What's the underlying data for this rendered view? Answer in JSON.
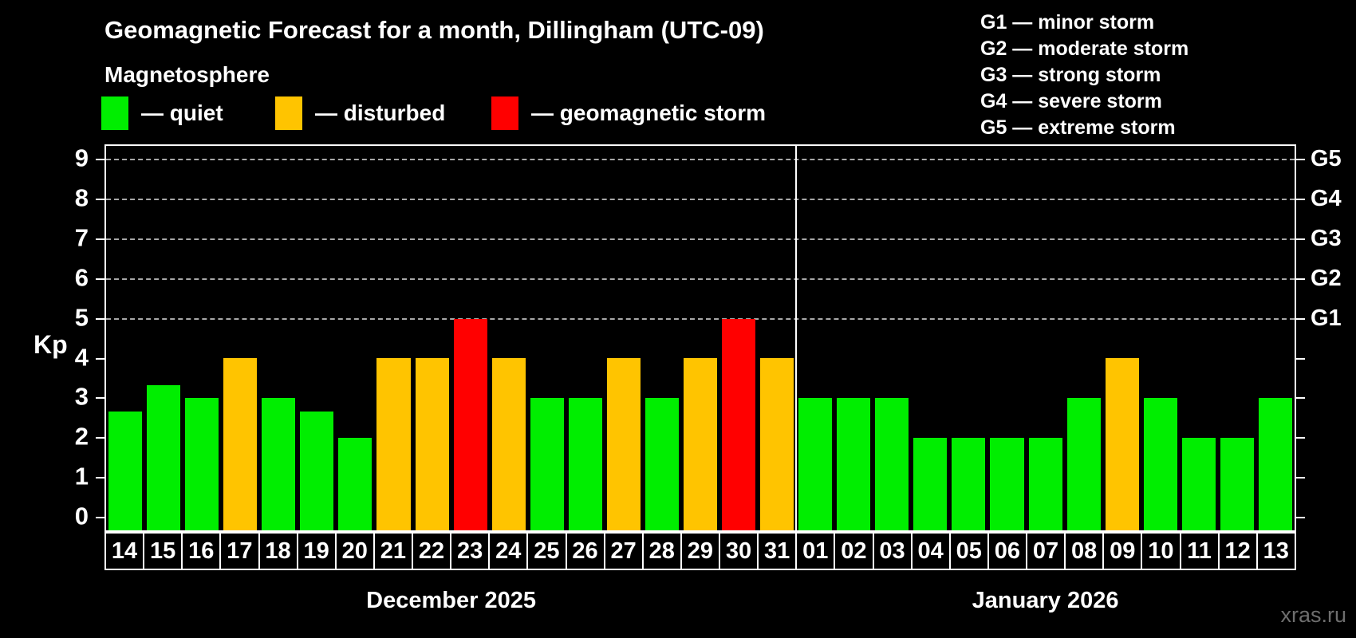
{
  "title": "Geomagnetic Forecast for a month, Dillingham (UTC-09)",
  "subtitle": "Magnetosphere",
  "watermark": "xras.ru",
  "legend": [
    {
      "key": "quiet",
      "label": "— quiet",
      "color": "#00ee00"
    },
    {
      "key": "disturbed",
      "label": "— disturbed",
      "color": "#ffc400"
    },
    {
      "key": "storm",
      "label": "— geomagnetic storm",
      "color": "#ff0000"
    }
  ],
  "g_legend": [
    "G1 — minor storm",
    "G2 — moderate storm",
    "G3 — strong storm",
    "G4 — severe storm",
    "G5 — extreme storm"
  ],
  "chart_data": {
    "type": "bar",
    "title": "Geomagnetic Forecast for a month, Dillingham (UTC-09)",
    "ylabel": "Kp",
    "ylim": [
      0,
      9
    ],
    "yticks": [
      0,
      1,
      2,
      3,
      4,
      5,
      6,
      7,
      8,
      9
    ],
    "gridlines_at": [
      5,
      6,
      7,
      8,
      9
    ],
    "grid": "dashed-horizontal-on-storm-levels-only",
    "legend_position": "top-left",
    "right_axis": [
      {
        "level": 5,
        "label": "G1"
      },
      {
        "level": 6,
        "label": "G2"
      },
      {
        "level": 7,
        "label": "G3"
      },
      {
        "level": 8,
        "label": "G4"
      },
      {
        "level": 9,
        "label": "G5"
      }
    ],
    "colors": {
      "quiet": "#00ee00",
      "disturbed": "#ffc400",
      "storm": "#ff0000"
    },
    "months": [
      {
        "label": "December 2025",
        "days": [
          {
            "day": "14",
            "value": 2.67,
            "status": "quiet"
          },
          {
            "day": "15",
            "value": 3.33,
            "status": "quiet"
          },
          {
            "day": "16",
            "value": 3,
            "status": "quiet"
          },
          {
            "day": "17",
            "value": 4,
            "status": "disturbed"
          },
          {
            "day": "18",
            "value": 3,
            "status": "quiet"
          },
          {
            "day": "19",
            "value": 2.67,
            "status": "quiet"
          },
          {
            "day": "20",
            "value": 2,
            "status": "quiet"
          },
          {
            "day": "21",
            "value": 4,
            "status": "disturbed"
          },
          {
            "day": "22",
            "value": 4,
            "status": "disturbed"
          },
          {
            "day": "23",
            "value": 5,
            "status": "storm"
          },
          {
            "day": "24",
            "value": 4,
            "status": "disturbed"
          },
          {
            "day": "25",
            "value": 3,
            "status": "quiet"
          },
          {
            "day": "26",
            "value": 3,
            "status": "quiet"
          },
          {
            "day": "27",
            "value": 4,
            "status": "disturbed"
          },
          {
            "day": "28",
            "value": 3,
            "status": "quiet"
          },
          {
            "day": "29",
            "value": 4,
            "status": "disturbed"
          },
          {
            "day": "30",
            "value": 5,
            "status": "storm"
          },
          {
            "day": "31",
            "value": 4,
            "status": "disturbed"
          }
        ]
      },
      {
        "label": "January 2026",
        "days": [
          {
            "day": "01",
            "value": 3,
            "status": "quiet"
          },
          {
            "day": "02",
            "value": 3,
            "status": "quiet"
          },
          {
            "day": "03",
            "value": 3,
            "status": "quiet"
          },
          {
            "day": "04",
            "value": 2,
            "status": "quiet"
          },
          {
            "day": "05",
            "value": 2,
            "status": "quiet"
          },
          {
            "day": "06",
            "value": 2,
            "status": "quiet"
          },
          {
            "day": "07",
            "value": 2,
            "status": "quiet"
          },
          {
            "day": "08",
            "value": 3,
            "status": "quiet"
          },
          {
            "day": "09",
            "value": 4,
            "status": "disturbed"
          },
          {
            "day": "10",
            "value": 3,
            "status": "quiet"
          },
          {
            "day": "11",
            "value": 2,
            "status": "quiet"
          },
          {
            "day": "12",
            "value": 2,
            "status": "quiet"
          },
          {
            "day": "13",
            "value": 3,
            "status": "quiet"
          }
        ]
      }
    ]
  }
}
